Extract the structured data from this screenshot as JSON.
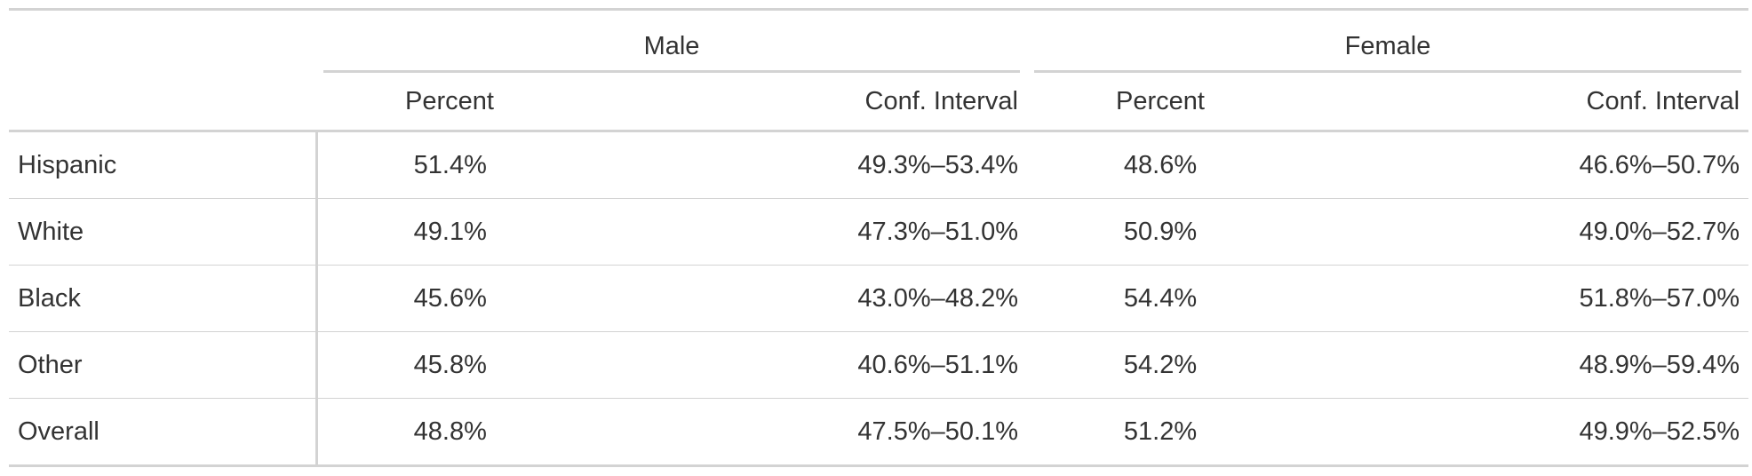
{
  "table": {
    "spanners": {
      "male": "Male",
      "female": "Female"
    },
    "columns": {
      "male_percent": "Percent",
      "male_ci": "Conf. Interval",
      "female_percent": "Percent",
      "female_ci": "Conf. Interval"
    },
    "rows": [
      {
        "label": "Hispanic",
        "male_percent": "51.4%",
        "male_ci": "49.3%–53.4%",
        "female_percent": "48.6%",
        "female_ci": "46.6%–50.7%"
      },
      {
        "label": "White",
        "male_percent": "49.1%",
        "male_ci": "47.3%–51.0%",
        "female_percent": "50.9%",
        "female_ci": "49.0%–52.7%"
      },
      {
        "label": "Black",
        "male_percent": "45.6%",
        "male_ci": "43.0%–48.2%",
        "female_percent": "54.4%",
        "female_ci": "51.8%–57.0%"
      },
      {
        "label": "Other",
        "male_percent": "45.8%",
        "male_ci": "40.6%–51.1%",
        "female_percent": "54.2%",
        "female_ci": "48.9%–59.4%"
      },
      {
        "label": "Overall",
        "male_percent": "48.8%",
        "male_ci": "47.5%–50.1%",
        "female_percent": "51.2%",
        "female_ci": "49.9%–52.5%"
      }
    ]
  }
}
